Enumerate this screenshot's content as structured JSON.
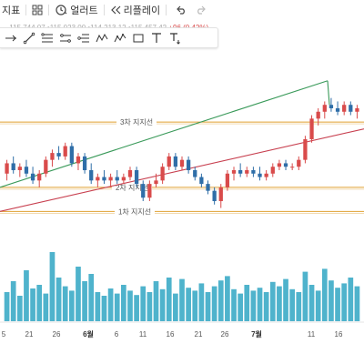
{
  "toolbar": {
    "indicator_label": "지표",
    "alert_label": "얼러트",
    "replay_label": "리플레이"
  },
  "ohlc_text": {
    "prefix": "…",
    "values": "115 744 07 •115 023 00 •114 213 12 •115 457 42",
    "change": "+96 (0.42%)"
  },
  "drawing_tools": [
    {
      "name": "crosshair-icon"
    },
    {
      "name": "trend-line-icon"
    },
    {
      "name": "horizontal-lines-icon"
    },
    {
      "name": "parallel-channel-icon"
    },
    {
      "name": "pitchfork-icon"
    },
    {
      "name": "xabcd-pattern-icon"
    },
    {
      "name": "elliott-wave-icon"
    },
    {
      "name": "rectangle-icon"
    },
    {
      "name": "text-icon"
    },
    {
      "name": "anchored-text-icon"
    }
  ],
  "levels": [
    {
      "label": "3차 지지선",
      "color": "#e0a030"
    },
    {
      "label": "2차 지지선",
      "color": "#e0a030"
    },
    {
      "label": "1차 지지선",
      "color": "#e0a030"
    }
  ],
  "trend_lines": [
    {
      "name": "green-trend-line",
      "color": "#3a9a5a"
    },
    {
      "name": "red-trend-line",
      "color": "#c84050"
    }
  ],
  "colors": {
    "up": "#d94b4b",
    "down": "#2f6ea8",
    "volume": "#4fb3cc",
    "level": "#e0a030"
  },
  "x_axis": {
    "ticks": [
      {
        "label": "5",
        "bold": false
      },
      {
        "label": "21",
        "bold": false
      },
      {
        "label": "26",
        "bold": false
      },
      {
        "label": "6월",
        "bold": true
      },
      {
        "label": "6",
        "bold": false
      },
      {
        "label": "11",
        "bold": false
      },
      {
        "label": "16",
        "bold": false
      },
      {
        "label": "21",
        "bold": false
      },
      {
        "label": "26",
        "bold": false
      },
      {
        "label": "7월",
        "bold": true
      },
      {
        "label": "11",
        "bold": false
      },
      {
        "label": "16",
        "bold": false
      }
    ]
  },
  "chart_data": {
    "type": "candlestick",
    "candles": [
      {
        "o": 112,
        "h": 116,
        "l": 110,
        "c": 115
      },
      {
        "o": 115,
        "h": 117,
        "l": 112,
        "c": 113
      },
      {
        "o": 113,
        "h": 115,
        "l": 111,
        "c": 114
      },
      {
        "o": 114,
        "h": 116,
        "l": 111,
        "c": 112
      },
      {
        "o": 112,
        "h": 114,
        "l": 109,
        "c": 110
      },
      {
        "o": 110,
        "h": 113,
        "l": 108,
        "c": 112
      },
      {
        "o": 112,
        "h": 117,
        "l": 111,
        "c": 116
      },
      {
        "o": 116,
        "h": 119,
        "l": 114,
        "c": 118
      },
      {
        "o": 118,
        "h": 120,
        "l": 116,
        "c": 117
      },
      {
        "o": 117,
        "h": 121,
        "l": 116,
        "c": 120
      },
      {
        "o": 120,
        "h": 121,
        "l": 114,
        "c": 115
      },
      {
        "o": 115,
        "h": 118,
        "l": 113,
        "c": 117
      },
      {
        "o": 117,
        "h": 118,
        "l": 112,
        "c": 113
      },
      {
        "o": 113,
        "h": 115,
        "l": 109,
        "c": 110
      },
      {
        "o": 110,
        "h": 112,
        "l": 108,
        "c": 111
      },
      {
        "o": 111,
        "h": 113,
        "l": 109,
        "c": 110
      },
      {
        "o": 110,
        "h": 112,
        "l": 108,
        "c": 111
      },
      {
        "o": 111,
        "h": 113,
        "l": 109,
        "c": 110
      },
      {
        "o": 110,
        "h": 112,
        "l": 109,
        "c": 111
      },
      {
        "o": 111,
        "h": 114,
        "l": 110,
        "c": 113
      },
      {
        "o": 113,
        "h": 114,
        "l": 108,
        "c": 109
      },
      {
        "o": 109,
        "h": 110,
        "l": 104,
        "c": 105
      },
      {
        "o": 105,
        "h": 110,
        "l": 104,
        "c": 109
      },
      {
        "o": 109,
        "h": 112,
        "l": 108,
        "c": 110
      },
      {
        "o": 110,
        "h": 115,
        "l": 109,
        "c": 114
      },
      {
        "o": 114,
        "h": 118,
        "l": 113,
        "c": 117
      },
      {
        "o": 117,
        "h": 118,
        "l": 113,
        "c": 114
      },
      {
        "o": 114,
        "h": 117,
        "l": 113,
        "c": 116
      },
      {
        "o": 116,
        "h": 117,
        "l": 112,
        "c": 113
      },
      {
        "o": 113,
        "h": 114,
        "l": 110,
        "c": 111
      },
      {
        "o": 111,
        "h": 112,
        "l": 108,
        "c": 109
      },
      {
        "o": 109,
        "h": 110,
        "l": 106,
        "c": 107
      },
      {
        "o": 107,
        "h": 108,
        "l": 103,
        "c": 104
      },
      {
        "o": 104,
        "h": 109,
        "l": 102,
        "c": 108
      },
      {
        "o": 108,
        "h": 113,
        "l": 107,
        "c": 112
      },
      {
        "o": 112,
        "h": 114,
        "l": 110,
        "c": 113
      },
      {
        "o": 113,
        "h": 115,
        "l": 111,
        "c": 112
      },
      {
        "o": 112,
        "h": 114,
        "l": 111,
        "c": 113
      },
      {
        "o": 113,
        "h": 114,
        "l": 111,
        "c": 112
      },
      {
        "o": 112,
        "h": 114,
        "l": 110,
        "c": 111
      },
      {
        "o": 111,
        "h": 113,
        "l": 110,
        "c": 112
      },
      {
        "o": 112,
        "h": 115,
        "l": 111,
        "c": 114
      },
      {
        "o": 114,
        "h": 116,
        "l": 113,
        "c": 115
      },
      {
        "o": 115,
        "h": 116,
        "l": 113,
        "c": 114
      },
      {
        "o": 114,
        "h": 115,
        "l": 113,
        "c": 114
      },
      {
        "o": 114,
        "h": 117,
        "l": 113,
        "c": 116
      },
      {
        "o": 116,
        "h": 123,
        "l": 115,
        "c": 122
      },
      {
        "o": 122,
        "h": 129,
        "l": 121,
        "c": 128
      },
      {
        "o": 128,
        "h": 131,
        "l": 126,
        "c": 130
      },
      {
        "o": 130,
        "h": 133,
        "l": 128,
        "c": 132
      },
      {
        "o": 132,
        "h": 134,
        "l": 130,
        "c": 131
      },
      {
        "o": 131,
        "h": 133,
        "l": 129,
        "c": 130
      },
      {
        "o": 130,
        "h": 133,
        "l": 129,
        "c": 132
      },
      {
        "o": 132,
        "h": 133,
        "l": 129,
        "c": 130
      },
      {
        "o": 130,
        "h": 132,
        "l": 128,
        "c": 131
      }
    ],
    "volume": [
      40,
      55,
      35,
      70,
      45,
      50,
      38,
      95,
      60,
      48,
      42,
      75,
      55,
      65,
      40,
      35,
      45,
      38,
      50,
      42,
      36,
      48,
      40,
      55,
      44,
      60,
      38,
      58,
      46,
      42,
      52,
      40,
      48,
      56,
      62,
      44,
      38,
      50,
      42,
      46,
      40,
      54,
      48,
      58,
      44,
      40,
      68,
      50,
      42,
      72,
      56,
      46,
      52,
      60,
      48
    ]
  }
}
